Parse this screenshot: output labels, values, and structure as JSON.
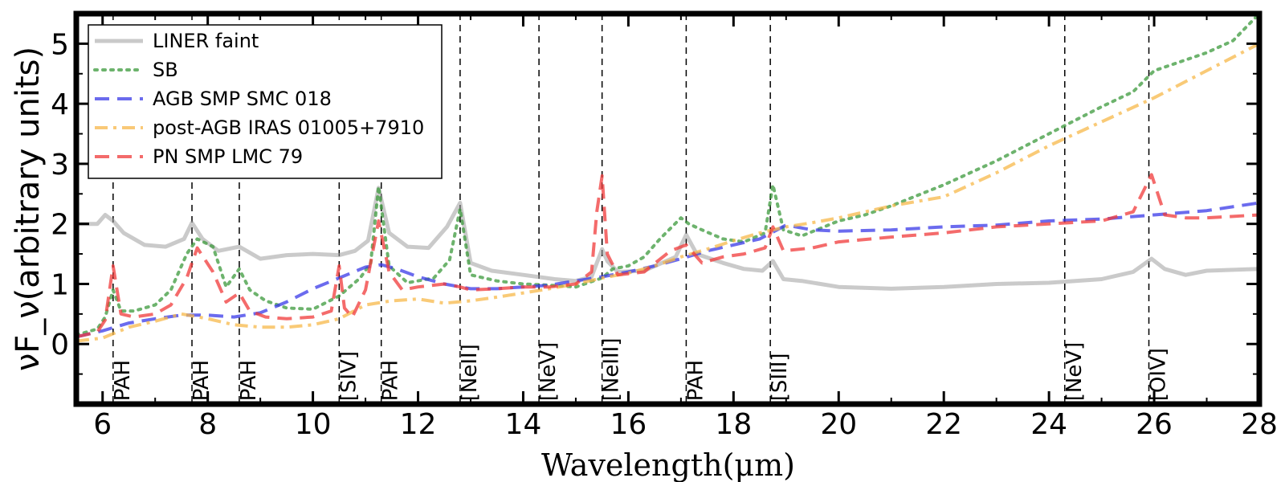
{
  "chart_data": {
    "type": "line",
    "xlabel": "Wavelength(μm)",
    "ylabel": "νF_ν(arbitrary units)",
    "xlim": [
      5.5,
      28
    ],
    "ylim": [
      -1.0,
      5.5
    ],
    "xticks": [
      6,
      8,
      10,
      12,
      14,
      16,
      18,
      20,
      22,
      24,
      26,
      28
    ],
    "yticks": [
      0,
      1,
      2,
      3,
      4,
      5
    ],
    "grid": false,
    "legend_position": "top-left",
    "series": [
      {
        "name": "LINER faint",
        "color": "#9e9e9e",
        "style": "solid",
        "x": [
          5.5,
          5.9,
          6.05,
          6.2,
          6.4,
          6.8,
          7.2,
          7.55,
          7.7,
          7.9,
          8.2,
          8.6,
          9.0,
          9.5,
          10.0,
          10.5,
          10.8,
          11.05,
          11.25,
          11.45,
          11.8,
          12.2,
          12.55,
          12.8,
          13.0,
          13.4,
          14.0,
          14.6,
          15.0,
          15.3,
          15.5,
          15.6,
          15.8,
          16.3,
          16.9,
          17.1,
          17.3,
          17.8,
          18.2,
          18.55,
          18.75,
          18.95,
          19.3,
          20.0,
          21.0,
          22.0,
          23.0,
          24.0,
          25.0,
          25.6,
          25.95,
          26.2,
          26.6,
          27.0,
          28.0
        ],
        "y": [
          2.0,
          2.0,
          2.15,
          2.05,
          1.85,
          1.65,
          1.62,
          1.75,
          2.02,
          1.75,
          1.55,
          1.62,
          1.42,
          1.48,
          1.5,
          1.48,
          1.55,
          1.72,
          2.6,
          1.85,
          1.62,
          1.6,
          1.95,
          2.35,
          1.35,
          1.22,
          1.15,
          1.08,
          1.05,
          1.12,
          1.58,
          1.38,
          1.2,
          1.22,
          1.45,
          1.82,
          1.5,
          1.35,
          1.25,
          1.22,
          1.38,
          1.08,
          1.05,
          0.95,
          0.92,
          0.95,
          1.0,
          1.02,
          1.08,
          1.2,
          1.42,
          1.25,
          1.15,
          1.22,
          1.25
        ]
      },
      {
        "name": "SB",
        "color": "#3c9a3c",
        "style": "dotted",
        "x": [
          5.5,
          5.9,
          6.05,
          6.2,
          6.35,
          6.6,
          7.0,
          7.3,
          7.6,
          7.8,
          8.1,
          8.35,
          8.6,
          8.8,
          9.1,
          9.5,
          10.0,
          10.5,
          10.9,
          11.1,
          11.25,
          11.45,
          11.8,
          12.3,
          12.6,
          12.8,
          13.0,
          13.5,
          14.0,
          14.5,
          15.0,
          15.5,
          15.7,
          16.0,
          16.3,
          16.6,
          17.0,
          17.15,
          17.4,
          17.8,
          18.2,
          18.6,
          18.75,
          18.95,
          19.3,
          20.0,
          20.5,
          21.0,
          22.0,
          23.0,
          24.0,
          25.0,
          25.6,
          26.0,
          26.5,
          27.0,
          27.5,
          28.0
        ],
        "y": [
          0.15,
          0.25,
          0.45,
          0.9,
          0.55,
          0.55,
          0.65,
          0.9,
          1.5,
          1.75,
          1.62,
          0.95,
          1.25,
          0.9,
          0.72,
          0.6,
          0.58,
          0.8,
          1.1,
          1.35,
          2.62,
          1.3,
          1.02,
          1.1,
          1.4,
          2.25,
          1.15,
          1.05,
          1.0,
          0.98,
          0.95,
          1.1,
          1.25,
          1.3,
          1.45,
          1.75,
          2.1,
          2.0,
          1.9,
          1.75,
          1.7,
          1.85,
          2.65,
          1.9,
          1.8,
          2.05,
          2.15,
          2.3,
          2.65,
          3.05,
          3.5,
          3.95,
          4.2,
          4.55,
          4.7,
          4.85,
          5.05,
          5.5
        ]
      },
      {
        "name": "AGB SMP SMC 018",
        "color": "#3a3ae8",
        "style": "dashed",
        "x": [
          5.5,
          6.0,
          6.5,
          7.0,
          7.5,
          8.0,
          8.5,
          9.0,
          9.5,
          10.0,
          10.5,
          11.0,
          11.3,
          11.6,
          12.0,
          12.5,
          13.0,
          13.5,
          14.0,
          14.5,
          15.0,
          15.5,
          16.0,
          16.5,
          17.0,
          17.5,
          18.0,
          18.5,
          19.0,
          19.5,
          20.0,
          21.0,
          22.0,
          23.0,
          24.0,
          25.0,
          26.0,
          27.0,
          28.0
        ],
        "y": [
          0.12,
          0.22,
          0.35,
          0.42,
          0.48,
          0.48,
          0.45,
          0.52,
          0.7,
          0.92,
          1.1,
          1.28,
          1.32,
          1.25,
          1.12,
          1.0,
          0.92,
          0.92,
          0.95,
          0.98,
          1.05,
          1.12,
          1.2,
          1.3,
          1.42,
          1.55,
          1.65,
          1.75,
          1.98,
          1.9,
          1.88,
          1.9,
          1.95,
          1.98,
          2.05,
          2.08,
          2.15,
          2.22,
          2.35
        ]
      },
      {
        "name": "post-AGB IRAS 01005+7910",
        "color": "#f7b84a",
        "style": "dashdot",
        "x": [
          5.5,
          6.0,
          6.5,
          7.0,
          7.5,
          8.0,
          8.5,
          9.0,
          9.5,
          10.0,
          10.5,
          11.0,
          11.5,
          12.0,
          12.5,
          13.0,
          13.5,
          14.0,
          14.5,
          15.0,
          15.5,
          16.0,
          16.5,
          17.0,
          17.5,
          18.0,
          18.5,
          19.0,
          19.5,
          20.0,
          21.0,
          22.0,
          23.0,
          24.0,
          25.0,
          26.0,
          27.0,
          28.0
        ],
        "y": [
          0.05,
          0.1,
          0.28,
          0.38,
          0.5,
          0.42,
          0.32,
          0.28,
          0.28,
          0.32,
          0.42,
          0.65,
          0.72,
          0.75,
          0.68,
          0.72,
          0.78,
          0.85,
          0.92,
          1.0,
          1.1,
          1.18,
          1.3,
          1.45,
          1.58,
          1.72,
          1.85,
          1.95,
          2.02,
          2.1,
          2.3,
          2.45,
          2.85,
          3.3,
          3.7,
          4.1,
          4.55,
          5.0
        ]
      },
      {
        "name": "PN SMP LMC 79",
        "color": "#f03a3a",
        "style": "dashed",
        "x": [
          5.5,
          5.9,
          6.05,
          6.2,
          6.35,
          6.6,
          7.0,
          7.3,
          7.6,
          7.8,
          8.1,
          8.35,
          8.6,
          8.8,
          9.1,
          9.5,
          10.0,
          10.35,
          10.5,
          10.6,
          10.75,
          11.0,
          11.25,
          11.45,
          11.7,
          12.0,
          12.5,
          12.8,
          13.0,
          13.5,
          14.0,
          14.5,
          15.0,
          15.3,
          15.4,
          15.5,
          15.6,
          15.8,
          16.3,
          16.8,
          17.1,
          17.4,
          17.8,
          18.2,
          18.6,
          18.75,
          18.95,
          19.5,
          20.0,
          21.0,
          22.0,
          23.0,
          24.0,
          25.0,
          25.6,
          25.95,
          26.2,
          26.6,
          27.0,
          28.0
        ],
        "y": [
          0.12,
          0.2,
          0.4,
          1.3,
          0.5,
          0.45,
          0.5,
          0.65,
          1.1,
          1.6,
          1.2,
          0.7,
          0.85,
          0.55,
          0.45,
          0.42,
          0.45,
          0.55,
          1.3,
          0.6,
          0.45,
          0.9,
          2.05,
          1.2,
          0.9,
          0.95,
          1.0,
          0.95,
          0.9,
          0.92,
          0.95,
          0.95,
          1.0,
          1.2,
          2.2,
          2.8,
          1.5,
          1.15,
          1.2,
          1.55,
          1.65,
          1.35,
          1.45,
          1.5,
          1.6,
          1.95,
          1.55,
          1.6,
          1.7,
          1.78,
          1.85,
          1.95,
          2.0,
          2.05,
          2.2,
          2.82,
          2.15,
          2.1,
          2.1,
          2.15
        ]
      }
    ],
    "annotations": [
      {
        "label": "PAH",
        "x": 6.2
      },
      {
        "label": "PAH",
        "x": 7.7
      },
      {
        "label": "PAH",
        "x": 8.6
      },
      {
        "label": "[SIV]",
        "x": 10.5
      },
      {
        "label": "PAH",
        "x": 11.3
      },
      {
        "label": "[NeII]",
        "x": 12.8
      },
      {
        "label": "[NeV]",
        "x": 14.3
      },
      {
        "label": "[NeIII]",
        "x": 15.5
      },
      {
        "label": "PAH",
        "x": 17.1
      },
      {
        "label": "[SIII]",
        "x": 18.7
      },
      {
        "label": "[NeV]",
        "x": 24.3
      },
      {
        "label": "[OIV]",
        "x": 25.9
      }
    ]
  }
}
